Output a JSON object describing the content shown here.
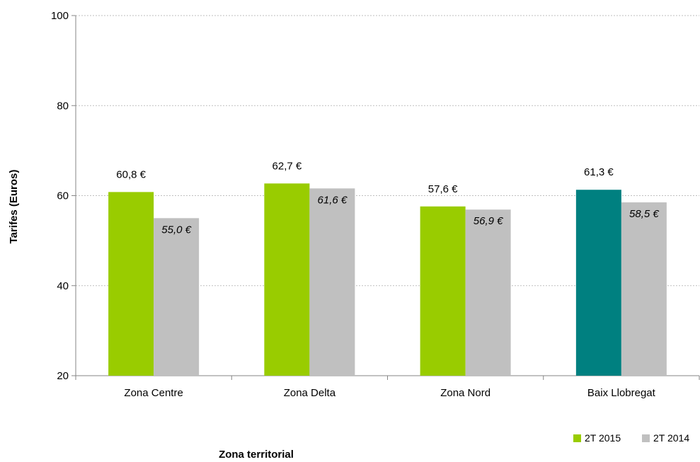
{
  "chart_data": {
    "type": "bar",
    "title": "",
    "xlabel": "Zona territorial",
    "ylabel": "Tarifes (Euros)",
    "ylim": [
      20,
      100
    ],
    "yticks": [
      20,
      40,
      60,
      80,
      100
    ],
    "grid": true,
    "legend_position": "bottom-right",
    "categories": [
      "Zona Centre",
      "Zona Delta",
      "Zona Nord",
      "Baix Llobregat"
    ],
    "series": [
      {
        "name": "2T 2015",
        "values": [
          60.8,
          62.7,
          57.6,
          61.3
        ],
        "labels": [
          "60,8 €",
          "62,7 €",
          "57,6 €",
          "61,3 €"
        ],
        "color": "#99cc00",
        "highlight_color": "#008080",
        "highlight_index": 3
      },
      {
        "name": "2T 2014",
        "values": [
          55.0,
          61.6,
          56.9,
          58.5
        ],
        "labels": [
          "55,0 €",
          "61,6 €",
          "56,9 €",
          "58,5 €"
        ],
        "color": "#c0c0c0"
      }
    ]
  }
}
